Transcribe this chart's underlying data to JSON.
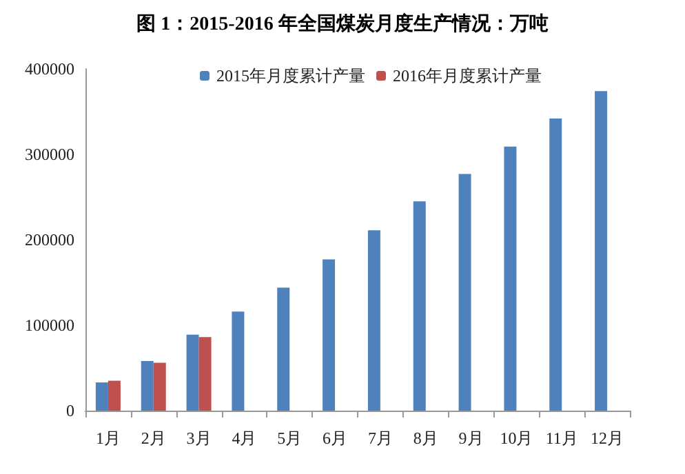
{
  "chart_data": {
    "type": "bar",
    "title": "图 1：2015-2016 年全国煤炭月度生产情况：万吨",
    "categories": [
      "1月",
      "2月",
      "3月",
      "4月",
      "5月",
      "6月",
      "7月",
      "8月",
      "9月",
      "10月",
      "11月",
      "12月"
    ],
    "series": [
      {
        "name": "2015年月度累计产量",
        "color": "#4f81bd",
        "values": [
          33000,
          58000,
          89000,
          116000,
          144000,
          177000,
          211000,
          245000,
          277000,
          309000,
          342000,
          374000
        ]
      },
      {
        "name": "2016年月度累计产量",
        "color": "#c0504d",
        "values": [
          35000,
          56000,
          86000,
          null,
          null,
          null,
          null,
          null,
          null,
          null,
          null,
          null
        ]
      }
    ],
    "ylim": [
      0,
      400000
    ],
    "yticks": [
      0,
      100000,
      200000,
      300000,
      400000
    ],
    "grid": false,
    "legend": "top"
  }
}
